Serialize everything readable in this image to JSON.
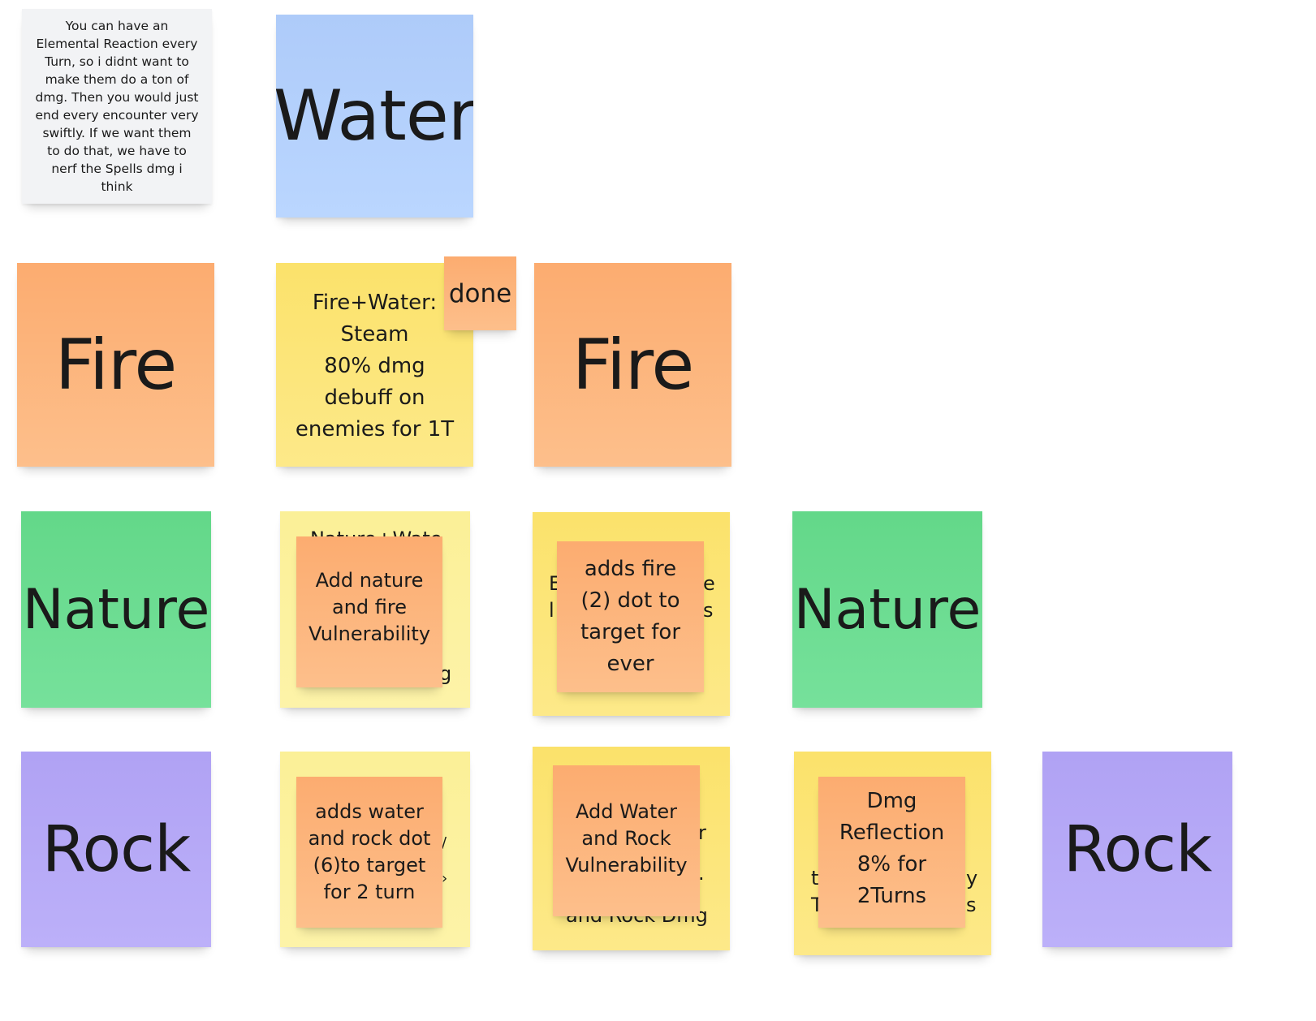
{
  "board": {
    "note": "You can have an Elemental Reaction every Turn, so i didnt want to make them do a ton of dmg. Then you would just end every encounter very swiftly. If we want them to do that, we have to nerf the Spells dmg i think",
    "row0": {
      "water": "Water"
    },
    "row1": {
      "fire_left": "Fire",
      "fire_water": "Fire+Water:\nSteam\n80% dmg\ndebuff on\nenemies for 1T",
      "done_tag": "done",
      "fire_right": "Fire"
    },
    "row2": {
      "nature_left": "Nature",
      "nature_water_under_top": "Nature+Wate",
      "nature_water_under_bottom": "g",
      "nature_water": "Add nature\nand fire\nVulnerability",
      "nature_fire_under_left1": "E",
      "nature_fire_under_left2": "l",
      "nature_fire_under_right1": "e",
      "nature_fire_under_right2": "s",
      "nature_fire": "adds fire\n(2) dot to\ntarget for\never",
      "nature_right": "Nature"
    },
    "row3": {
      "rock_left": "Rock",
      "rock_water_under_1": "/",
      "rock_water_under_2": "›",
      "rock_water": "adds water\nand rock dot\n(6)to target\nfor 2 turn",
      "rock_fire_under_1": "r",
      "rock_fire_under_2": ".",
      "rock_fire_under_bottom": "and Rock Dmg",
      "rock_fire": "Add Water\nand Rock\nVulnerability",
      "rock_nature_under_l1": "t",
      "rock_nature_under_l2": "T",
      "rock_nature_under_r1": "y",
      "rock_nature_under_r2": "s",
      "rock_nature": "Dmg\nReflection\n8% for\n2Turns",
      "rock_right": "Rock"
    }
  },
  "colors": {
    "water": "#b4d1fc",
    "fire": "#fdb47d",
    "reaction_yellow": "#fce67a",
    "reaction_light_yellow": "#fcf19f",
    "nature": "#6cdc92",
    "rock": "#b7a9f7",
    "note": "#f2f3f5"
  }
}
